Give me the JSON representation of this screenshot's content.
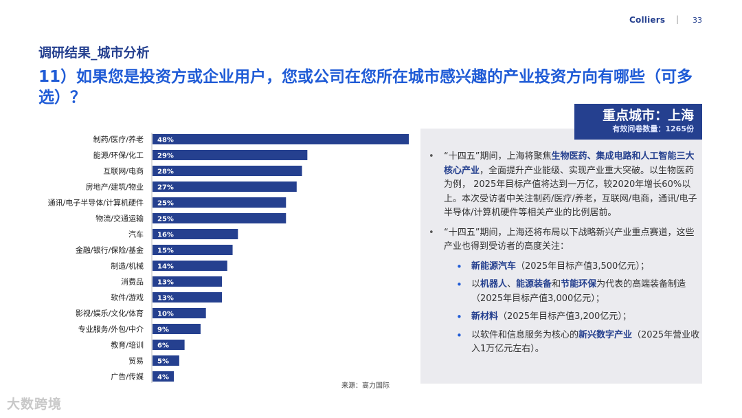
{
  "header": {
    "brand": "Colliers",
    "separator": "|",
    "page_number": "33"
  },
  "section_title": "调研结果_城市分析",
  "question": "11）如果您是投资方或企业用户，您或公司在您所在城市感兴趣的产业投资方向有哪些（可多选）？",
  "city_box": {
    "title": "重点城市：上海",
    "sample": "有效问卷数量：1265份"
  },
  "chart_data": {
    "type": "bar",
    "orientation": "horizontal",
    "categories": [
      "制药/医疗/养老",
      "能源/环保/化工",
      "互联网/电商",
      "房地产/建筑/物业",
      "通讯/电子半导体/计算机硬件",
      "物流/交通运输",
      "汽车",
      "金融/银行/保险/基金",
      "制造/机械",
      "消费品",
      "软件/游戏",
      "影视/娱乐/文化/体育",
      "专业服务/外包/中介",
      "教育/培训",
      "贸易",
      "广告/传媒"
    ],
    "values": [
      48,
      29,
      28,
      27,
      25,
      25,
      16,
      15,
      14,
      13,
      13,
      10,
      9,
      6,
      5,
      4
    ],
    "labels": [
      "48%",
      "29%",
      "28%",
      "27%",
      "25%",
      "25%",
      "16%",
      "15%",
      "14%",
      "13%",
      "13%",
      "10%",
      "9%",
      "6%",
      "5%",
      "4%"
    ],
    "unit": "%",
    "xlim": [
      0,
      50
    ],
    "color": "#25408f"
  },
  "source": "来源：高力国际",
  "bullets": [
    {
      "parts": [
        {
          "text": "“十四五”期间，上海将聚焦",
          "hl": false
        },
        {
          "text": "生物医药、集成电路和人工智能三大核心产业",
          "hl": true
        },
        {
          "text": "，全面提升产业能级、实现产业重大突破。以生物医药为例， 2025年目标产值将达到一万亿，较2020年增长60%以上。本次受访者中关注制药/医疗/养老，互联网/电商，通讯/电子半导体/计算机硬件等相关产业的比例居前。",
          "hl": false
        }
      ]
    },
    {
      "parts": [
        {
          "text": "“十四五”期间，上海还将布局以下战略新兴产业重点赛道，这些产业也得到受访者的高度关注：",
          "hl": false
        }
      ]
    }
  ],
  "sub_bullets": [
    {
      "parts": [
        {
          "text": "新能源汽车",
          "hl": true
        },
        {
          "text": "（2025年目标产值3,500亿元）；",
          "hl": false
        }
      ]
    },
    {
      "parts": [
        {
          "text": "以",
          "hl": false
        },
        {
          "text": "机器人",
          "hl": true
        },
        {
          "text": "、",
          "hl": false
        },
        {
          "text": "能源装备",
          "hl": true
        },
        {
          "text": "和",
          "hl": false
        },
        {
          "text": "节能环保",
          "hl": true
        },
        {
          "text": "为代表的高端装备制造（2025年目标产值3,000亿元）；",
          "hl": false
        }
      ]
    },
    {
      "parts": [
        {
          "text": "新材料",
          "hl": true
        },
        {
          "text": "（2025年目标产值3,200亿元）；",
          "hl": false
        }
      ]
    },
    {
      "parts": [
        {
          "text": "以软件和信息服务为核心的",
          "hl": false
        },
        {
          "text": "新兴数字产业",
          "hl": true
        },
        {
          "text": "（2025年营业收入1万亿元左右）。",
          "hl": false
        }
      ]
    }
  ],
  "watermark": "大数跨境",
  "colors": {
    "navy": "#25408f",
    "blue": "#1f5bd6",
    "panel": "#ebebef"
  }
}
